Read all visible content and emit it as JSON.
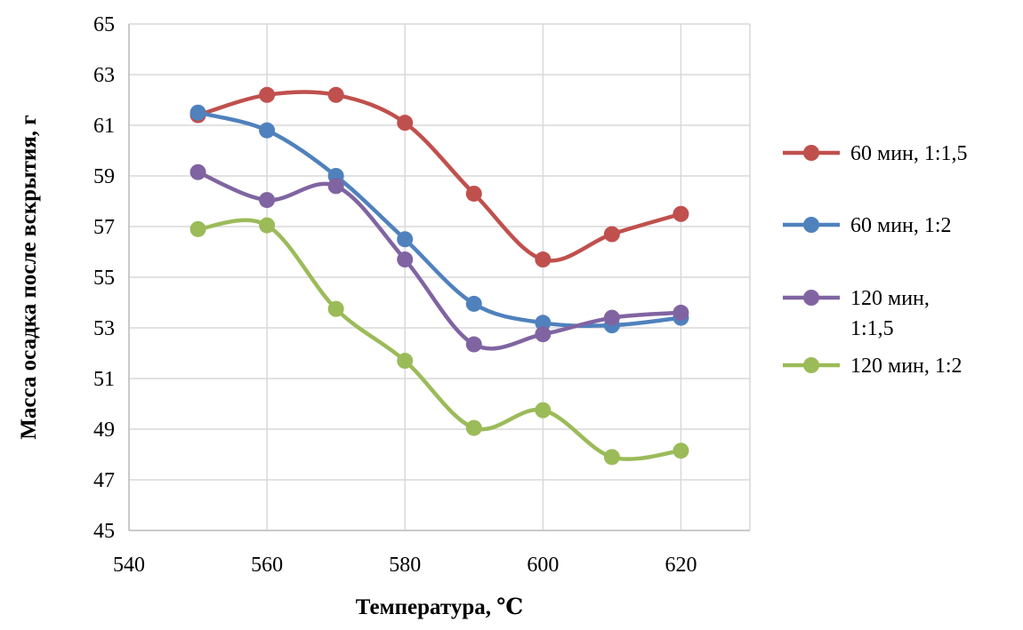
{
  "chart_data": {
    "type": "line",
    "title": "",
    "xlabel": "Температура, ℃",
    "ylabel": "Масса осадка после вскрытия, г",
    "xlim": [
      540,
      630
    ],
    "ylim": [
      45,
      65
    ],
    "x_ticks": [
      540,
      560,
      580,
      600,
      620
    ],
    "y_ticks": [
      45,
      47,
      49,
      51,
      53,
      55,
      57,
      59,
      61,
      63,
      65
    ],
    "grid": "vertical and horizontal",
    "legend_position": "right",
    "smooth": true,
    "x": [
      550,
      560,
      570,
      580,
      590,
      600,
      610,
      620
    ],
    "series": [
      {
        "name": "60 мин, 1:1,5",
        "legend_lines": [
          "60 мин, 1:1,5"
        ],
        "color": "#c0504d",
        "values": [
          61.4,
          62.2,
          62.2,
          61.1,
          58.3,
          55.7,
          56.7,
          57.5
        ]
      },
      {
        "name": "60 мин, 1:2",
        "legend_lines": [
          "60 мин, 1:2"
        ],
        "color": "#4f81bd",
        "values": [
          61.5,
          60.8,
          59.0,
          56.5,
          53.95,
          53.2,
          53.1,
          53.4
        ]
      },
      {
        "name": "120 мин, 1:1,5",
        "legend_lines": [
          "120 мин,",
          "1:1,5"
        ],
        "color": "#8064a2",
        "values": [
          59.15,
          58.05,
          58.6,
          55.7,
          52.35,
          52.75,
          53.4,
          53.6
        ]
      },
      {
        "name": "120 мин, 1:2",
        "legend_lines": [
          "120 мин, 1:2"
        ],
        "color": "#9bbb59",
        "values": [
          56.9,
          57.05,
          53.75,
          51.7,
          49.05,
          49.75,
          47.9,
          48.15
        ]
      }
    ]
  }
}
